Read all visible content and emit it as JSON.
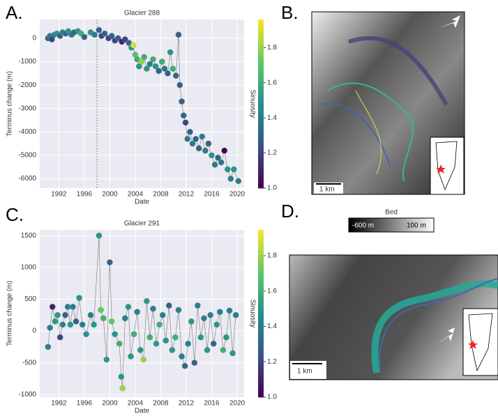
{
  "panels": {
    "a": "A.",
    "b": "B.",
    "c": "C.",
    "d": "D.",
    "bed": "Bed",
    "bed_min": "-600 m",
    "bed_max": "100 m",
    "scale_b": "1 km",
    "scale_d": "1 km"
  },
  "chart_data": [
    {
      "type": "scatter",
      "title": "Glacier 288",
      "x_label": "Date",
      "y_label": "Terminus change (m)",
      "color_label": "Sinuosity",
      "colormap": "viridis",
      "line_color": "#777",
      "marker_line": "#999",
      "vline": 1998,
      "xlim": [
        1989,
        2021.1
      ],
      "ylim": [
        -6400,
        800
      ],
      "clim": [
        1.0,
        1.96
      ],
      "xticks": [
        1992,
        1996,
        2000,
        2004,
        2008,
        2012,
        2016,
        2020
      ],
      "yticks": [
        -6000,
        -5000,
        -4000,
        -3000,
        -2000,
        -1000,
        0
      ],
      "cticks": [
        {
          "value": 1.0,
          "label": "1.0"
        },
        1.2,
        1.4,
        1.6,
        1.8
      ],
      "grid": true,
      "x": [
        1990.3,
        1990.6,
        1990.9,
        1991.3,
        1991.7,
        1992.2,
        1992.6,
        1993.1,
        1993.5,
        1994,
        1994.4,
        1995,
        1995.5,
        1996,
        1997,
        1997.6,
        1998.3,
        1998.7,
        1999.2,
        1999.8,
        2000.3,
        2000.8,
        2001.3,
        2001.9,
        2002.4,
        2003,
        2003.4,
        2003.7,
        2004,
        2004.3,
        2004.6,
        2005,
        2005.4,
        2005.8,
        2006.3,
        2006.8,
        2007.2,
        2007.7,
        2008.2,
        2008.6,
        2009.1,
        2009.5,
        2009.9,
        2010.4,
        2010.8,
        2011,
        2011.3,
        2011.6,
        2011.9,
        2012.2,
        2012.6,
        2013,
        2013.5,
        2014,
        2014.5,
        2015,
        2015.5,
        2016,
        2016.5,
        2017,
        2017.5,
        2018,
        2018.5,
        2019,
        2019.5,
        2020.2
      ],
      "values": [
        0,
        100,
        -50,
        150,
        200,
        100,
        250,
        200,
        300,
        150,
        250,
        300,
        200,
        50,
        250,
        150,
        350,
        100,
        200,
        0,
        100,
        -100,
        0,
        -150,
        -50,
        -200,
        -400,
        -300,
        -700,
        -900,
        -1200,
        -1000,
        -800,
        -1300,
        -1100,
        -900,
        -1200,
        -1400,
        -1000,
        -1300,
        -1500,
        -600,
        -1300,
        -1600,
        150,
        -2000,
        -2700,
        -3300,
        -3600,
        -4300,
        -4000,
        -4500,
        -4300,
        -4700,
        -4200,
        -4800,
        -4500,
        -5000,
        -5400,
        -5100,
        -5300,
        -4800,
        -5600,
        -6000,
        -5600,
        -6100
      ],
      "color_values": [
        1.3,
        1.4,
        1.2,
        1.4,
        1.5,
        1.3,
        1.4,
        1.3,
        1.5,
        1.4,
        1.3,
        1.5,
        1.6,
        1.3,
        1.5,
        1.4,
        1.3,
        1.2,
        1.3,
        1.2,
        1.3,
        1.2,
        1.3,
        1.1,
        1.2,
        1.3,
        1.5,
        1.9,
        1.7,
        1.6,
        1.5,
        1.8,
        1.6,
        1.5,
        1.4,
        1.6,
        1.5,
        1.3,
        1.6,
        1.4,
        1.3,
        1.5,
        1.6,
        1.3,
        1.3,
        1.3,
        1.3,
        1.3,
        1.2,
        1.4,
        1.3,
        1.4,
        1.3,
        1.3,
        1.4,
        1.4,
        1.3,
        1.5,
        1.4,
        1.3,
        1.4,
        1.0,
        1.5,
        1.4,
        1.5,
        1.4
      ]
    },
    {
      "type": "scatter",
      "title": "Glacier 291",
      "x_label": "Date",
      "y_label": "Terminus change (m)",
      "color_label": "Sinuosity",
      "colormap": "viridis",
      "line_color": "#777",
      "marker_line": "#999",
      "xlim": [
        1989,
        2021.1
      ],
      "ylim": [
        -1040,
        1590
      ],
      "clim": [
        1.0,
        1.946
      ],
      "xticks": [
        1992,
        1996,
        2000,
        2004,
        2008,
        2012,
        2016,
        2020
      ],
      "yticks": [
        -1000,
        -500,
        0,
        500,
        1000,
        1500
      ],
      "cticks": [
        {
          "value": 1.0,
          "label": "1.0"
        },
        1.2,
        1.4,
        1.6,
        1.8
      ],
      "grid": true,
      "x": [
        1990.3,
        1990.6,
        1991,
        1991.4,
        1991.8,
        1992.2,
        1992.6,
        1993,
        1993.4,
        1993.8,
        1994.2,
        1994.7,
        1995.2,
        1995.7,
        1996.3,
        1997,
        1997.5,
        1998.3,
        1998.6,
        1999,
        1999.5,
        2000,
        2000.3,
        2000.8,
        2001.5,
        2001.8,
        2002,
        2002.4,
        2002.9,
        2003.3,
        2003.8,
        2004.3,
        2004.8,
        2005.3,
        2005.8,
        2006.3,
        2006.8,
        2007.3,
        2007.8,
        2008.3,
        2008.8,
        2009.3,
        2009.8,
        2010.3,
        2010.8,
        2011.3,
        2011.8,
        2012.3,
        2012.8,
        2013.3,
        2013.8,
        2014.3,
        2014.8,
        2015.3,
        2015.8,
        2016.3,
        2016.8,
        2017.3,
        2017.8,
        2018.3,
        2018.8,
        2019.3,
        2019.8
      ],
      "values": [
        -250,
        50,
        380,
        150,
        250,
        -100,
        100,
        250,
        380,
        100,
        380,
        150,
        520,
        100,
        -50,
        250,
        100,
        1500,
        330,
        200,
        -450,
        1080,
        150,
        -50,
        -200,
        -720,
        -900,
        200,
        380,
        -400,
        -50,
        300,
        -300,
        -450,
        470,
        -100,
        350,
        -200,
        100,
        250,
        -150,
        400,
        -300,
        -100,
        330,
        -400,
        -550,
        -200,
        150,
        -500,
        400,
        -100,
        200,
        -300,
        250,
        -200,
        100,
        300,
        -300,
        -100,
        320,
        -350,
        250
      ],
      "color_values": [
        1.4,
        1.4,
        1.1,
        1.5,
        1.5,
        1.2,
        1.4,
        1.3,
        1.4,
        1.5,
        1.4,
        1.3,
        1.5,
        1.4,
        1.5,
        1.4,
        1.5,
        1.5,
        1.7,
        1.6,
        1.5,
        1.3,
        1.7,
        1.5,
        1.6,
        1.5,
        1.8,
        1.4,
        1.5,
        1.5,
        1.6,
        1.4,
        1.5,
        1.8,
        1.5,
        1.6,
        1.4,
        1.5,
        1.6,
        1.4,
        1.5,
        1.3,
        1.5,
        1.6,
        1.4,
        1.4,
        1.3,
        1.4,
        1.5,
        1.3,
        1.4,
        1.5,
        1.4,
        1.5,
        1.4,
        1.3,
        1.5,
        1.4,
        1.6,
        1.5,
        1.4,
        1.5,
        1.4
      ]
    }
  ]
}
